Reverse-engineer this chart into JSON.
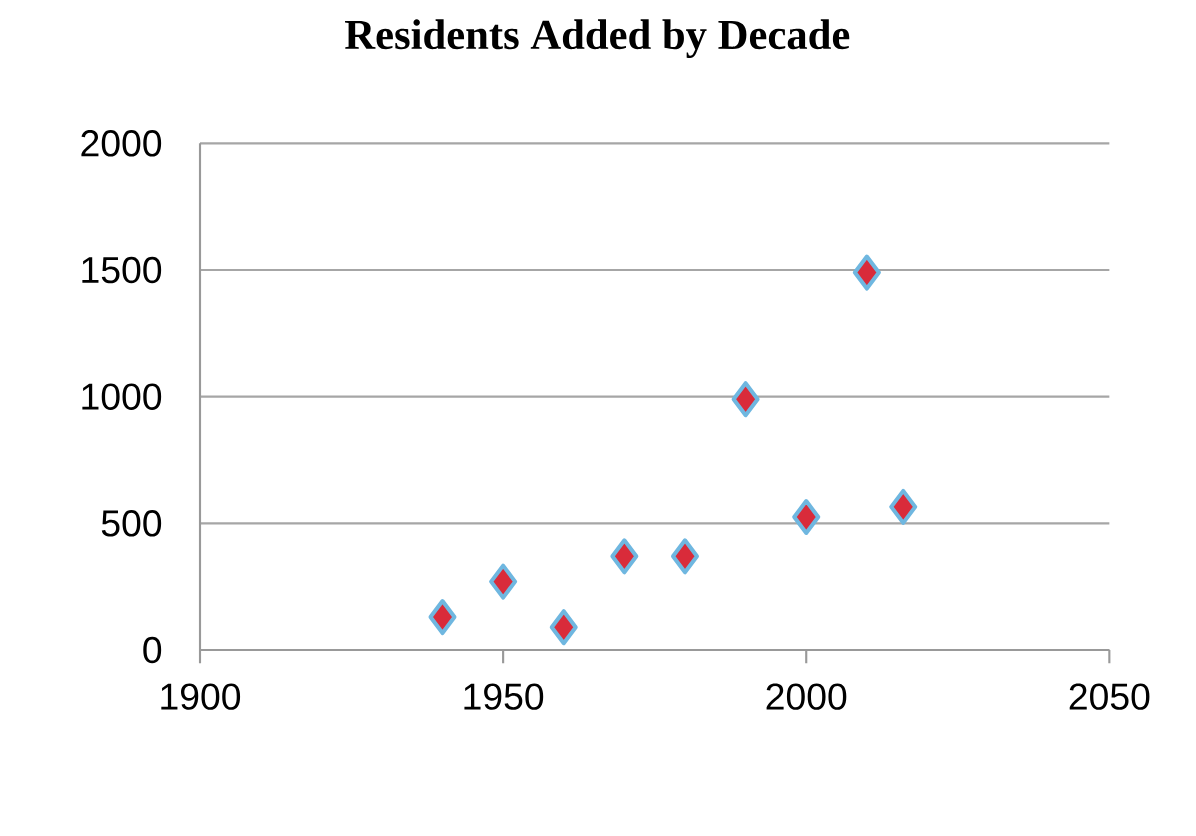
{
  "chart_data": {
    "type": "scatter",
    "title": "Residents Added by Decade",
    "x": [
      1940,
      1950,
      1960,
      1970,
      1980,
      1990,
      2000,
      2010,
      2016
    ],
    "values": [
      130,
      270,
      90,
      370,
      370,
      990,
      525,
      1490,
      565
    ],
    "color": "#d92b3a",
    "marker": "diamond",
    "xlim": [
      1900,
      2050
    ],
    "xticks": [
      1900,
      1950,
      2000,
      2050
    ],
    "ylim": [
      0,
      2000
    ],
    "yticks": [
      0,
      500,
      1000,
      1500,
      2000
    ],
    "grid": "y"
  }
}
